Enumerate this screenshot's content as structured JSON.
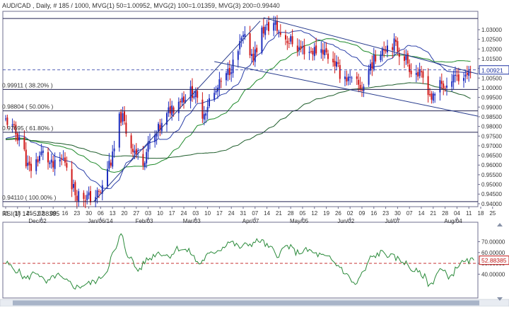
{
  "window": {
    "title": "AUD/CAD , Daily, # 185 / 1000, MVG(1) 50=1.00952, MVG(2) 100=1.01359, MVG(3) 200=0.99440"
  },
  "colors": {
    "background": "#ffffff",
    "border": "#6f6f8f",
    "grid": "#d8d8e4",
    "text": "#333333",
    "bull_candle": "#1f2fbf",
    "bear_candle": "#d01818",
    "ma50": "#2b3fa8",
    "ma100": "#1e8a2a",
    "ma200": "#1d5c2a",
    "trendline": "#263a8c",
    "fib_line": "#202050",
    "rsi_line": "#2a8a3a",
    "rsi_ref": "#c01818",
    "price_marker": "#1a2fa0",
    "scrollbar": "#a8b4c8"
  },
  "chart_data": [
    {
      "type": "candlestick",
      "title": "AUD/CAD , Daily, # 185 / 1000, MVG(1) 50=1.00952, MVG(2) 100=1.01359, MVG(3) 200=0.99440",
      "ylim": [
        0.9385,
        1.0395
      ],
      "y_ticks": [
        1.03,
        1.025,
        1.02,
        1.015,
        1.01,
        1.005,
        1.0,
        0.995,
        0.99,
        0.985,
        0.98,
        0.975,
        0.97,
        0.965,
        0.96,
        0.955,
        0.95,
        0.945,
        0.94
      ],
      "y_tick_labels": [
        "1.03000",
        "1.02500",
        "1.02000",
        "1.01500",
        "1.01000",
        "1.00500",
        "1.00000",
        "0.99500",
        "0.99000",
        "0.98500",
        "0.98000",
        "0.97500",
        "0.97000",
        "0.96500",
        "0.96000",
        "0.95500",
        "0.95000",
        "0.94500",
        "0.94000"
      ],
      "current_price": 1.00921,
      "current_price_label": "1.00921",
      "x_tick_labels": [
        "11",
        "18",
        "25",
        "02",
        "09",
        "16",
        "23",
        "30",
        "06",
        "13",
        "20",
        "27",
        "03",
        "10",
        "17",
        "24",
        "03",
        "10",
        "17",
        "24",
        "31",
        "07",
        "14",
        "21",
        "28",
        "05",
        "12",
        "19",
        "26",
        "02",
        "09",
        "16",
        "23",
        "30",
        "07",
        "14",
        "21",
        "28",
        "04",
        "11",
        "18",
        "25"
      ],
      "x_month_labels": [
        "Dec/02",
        "Jan/06/14",
        "Feb/03",
        "Mar/03",
        "Apr/07",
        "May/05",
        "Jun/02",
        "Jul/07",
        "Aug/04"
      ],
      "fib_levels": [
        {
          "label": "0.99911 ( 38.20% )",
          "value": 0.99911
        },
        {
          "label": "0.98804 ( 50.00% )",
          "value": 0.98804
        },
        {
          "label": "0.97695 ( 61.80% )",
          "value": 0.97695
        },
        {
          "label": "0.94110 ( 100.00% )",
          "value": 0.9411
        }
      ],
      "top_level": 1.0358,
      "series": [
        {
          "name": "MVG(1) 50",
          "last": 1.00952
        },
        {
          "name": "MVG(2) 100",
          "last": 1.01359
        },
        {
          "name": "MVG(3) 200",
          "last": 0.9944
        }
      ],
      "close_anchors": [
        [
          0,
          0.983
        ],
        [
          8,
          0.975
        ],
        [
          14,
          0.958
        ],
        [
          22,
          0.966
        ],
        [
          28,
          0.959
        ],
        [
          34,
          0.963
        ],
        [
          42,
          0.945
        ],
        [
          50,
          0.943
        ],
        [
          55,
          0.945
        ],
        [
          62,
          0.962
        ],
        [
          68,
          0.985
        ],
        [
          74,
          0.97
        ],
        [
          80,
          0.962
        ],
        [
          86,
          0.972
        ],
        [
          92,
          0.98
        ],
        [
          98,
          0.99
        ],
        [
          104,
          0.995
        ],
        [
          110,
          0.998
        ],
        [
          116,
          0.987
        ],
        [
          122,
          0.996
        ],
        [
          128,
          1.003
        ],
        [
          134,
          1.012
        ],
        [
          140,
          1.025
        ],
        [
          146,
          1.017
        ],
        [
          152,
          1.03
        ],
        [
          158,
          1.033
        ],
        [
          162,
          1.028
        ],
        [
          168,
          1.024
        ],
        [
          174,
          1.02
        ],
        [
          180,
          1.019
        ],
        [
          186,
          1.02
        ],
        [
          192,
          1.015
        ],
        [
          198,
          1.007
        ],
        [
          204,
          1.003
        ],
        [
          210,
          1.0
        ],
        [
          216,
          1.013
        ],
        [
          222,
          1.021
        ],
        [
          228,
          1.023
        ],
        [
          234,
          1.017
        ],
        [
          240,
          1.009
        ],
        [
          246,
          1.005
        ],
        [
          252,
          0.994
        ],
        [
          256,
          1.004
        ],
        [
          260,
          0.998
        ],
        [
          264,
          1.008
        ],
        [
          268,
          1.004
        ],
        [
          272,
          1.008
        ],
        [
          276,
          1.0092
        ]
      ]
    },
    {
      "type": "line",
      "title": "RSI(1) 14=52.88385",
      "ylim": [
        18,
        88
      ],
      "y_ticks": [
        70,
        60,
        50,
        40
      ],
      "y_tick_labels": [
        "70.00000",
        "60.00000",
        "50.00000",
        "40.00000"
      ],
      "reference_level": 50,
      "current_value": 52.88385,
      "current_label": "52.88385",
      "series": [
        {
          "name": "RSI(1) 14",
          "anchors": [
            [
              0,
              50
            ],
            [
              6,
              44
            ],
            [
              12,
              36
            ],
            [
              18,
              42
            ],
            [
              24,
              32
            ],
            [
              30,
              39
            ],
            [
              36,
              33
            ],
            [
              42,
              28
            ],
            [
              48,
              31
            ],
            [
              54,
              34
            ],
            [
              58,
              40
            ],
            [
              64,
              60
            ],
            [
              68,
              76
            ],
            [
              72,
              58
            ],
            [
              78,
              44
            ],
            [
              84,
              54
            ],
            [
              90,
              60
            ],
            [
              96,
              57
            ],
            [
              102,
              64
            ],
            [
              108,
              61
            ],
            [
              114,
              50
            ],
            [
              120,
              58
            ],
            [
              126,
              63
            ],
            [
              132,
              70
            ],
            [
              138,
              65
            ],
            [
              144,
              68
            ],
            [
              150,
              71
            ],
            [
              156,
              64
            ],
            [
              160,
              58
            ],
            [
              166,
              66
            ],
            [
              172,
              60
            ],
            [
              178,
              62
            ],
            [
              184,
              58
            ],
            [
              190,
              55
            ],
            [
              196,
              48
            ],
            [
              202,
              38
            ],
            [
              206,
              30
            ],
            [
              210,
              40
            ],
            [
              216,
              56
            ],
            [
              222,
              60
            ],
            [
              228,
              56
            ],
            [
              234,
              52
            ],
            [
              240,
              44
            ],
            [
              246,
              39
            ],
            [
              250,
              30
            ],
            [
              256,
              44
            ],
            [
              262,
              38
            ],
            [
              268,
              50
            ],
            [
              276,
              52.9
            ]
          ]
        }
      ]
    }
  ]
}
